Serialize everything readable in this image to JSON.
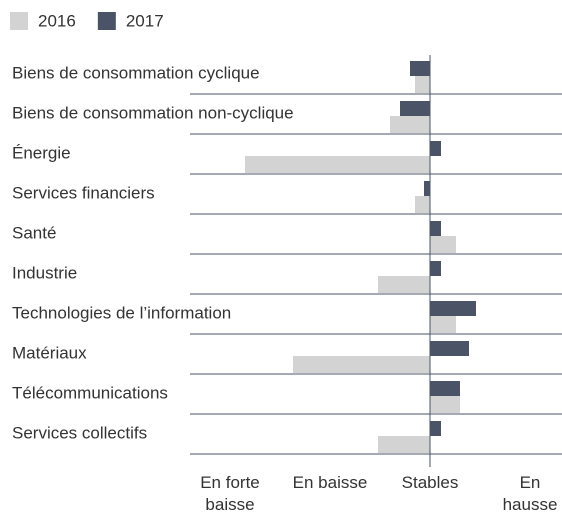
{
  "chart_data": {
    "type": "bar",
    "orientation": "horizontal",
    "categories": [
      "Biens de consommation cyclique",
      "Biens de consommation non-cyclique",
      "Énergie",
      "Services financiers",
      "Santé",
      "Industrie",
      "Technologies de l’information",
      "Matériaux",
      "Télécommunications",
      "Services collectifs"
    ],
    "series": [
      {
        "name": "2016",
        "color": "#d3d3d3",
        "values": [
          -0.15,
          -0.4,
          -1.85,
          -0.15,
          0.26,
          -0.52,
          0.26,
          -1.37,
          0.3,
          -0.52
        ]
      },
      {
        "name": "2017",
        "color": "#4a5466",
        "values": [
          -0.2,
          -0.3,
          0.11,
          -0.06,
          0.11,
          0.11,
          0.46,
          0.39,
          0.3,
          0.11
        ]
      }
    ],
    "xlim": [
      -2.4,
      1.3
    ],
    "xticks": [
      {
        "value": -2,
        "label": "En forte baisse"
      },
      {
        "value": -1,
        "label": "En baisse"
      },
      {
        "value": 0,
        "label": "Stables"
      },
      {
        "value": 1,
        "label": "En hausse"
      }
    ],
    "legend": "top-left"
  }
}
